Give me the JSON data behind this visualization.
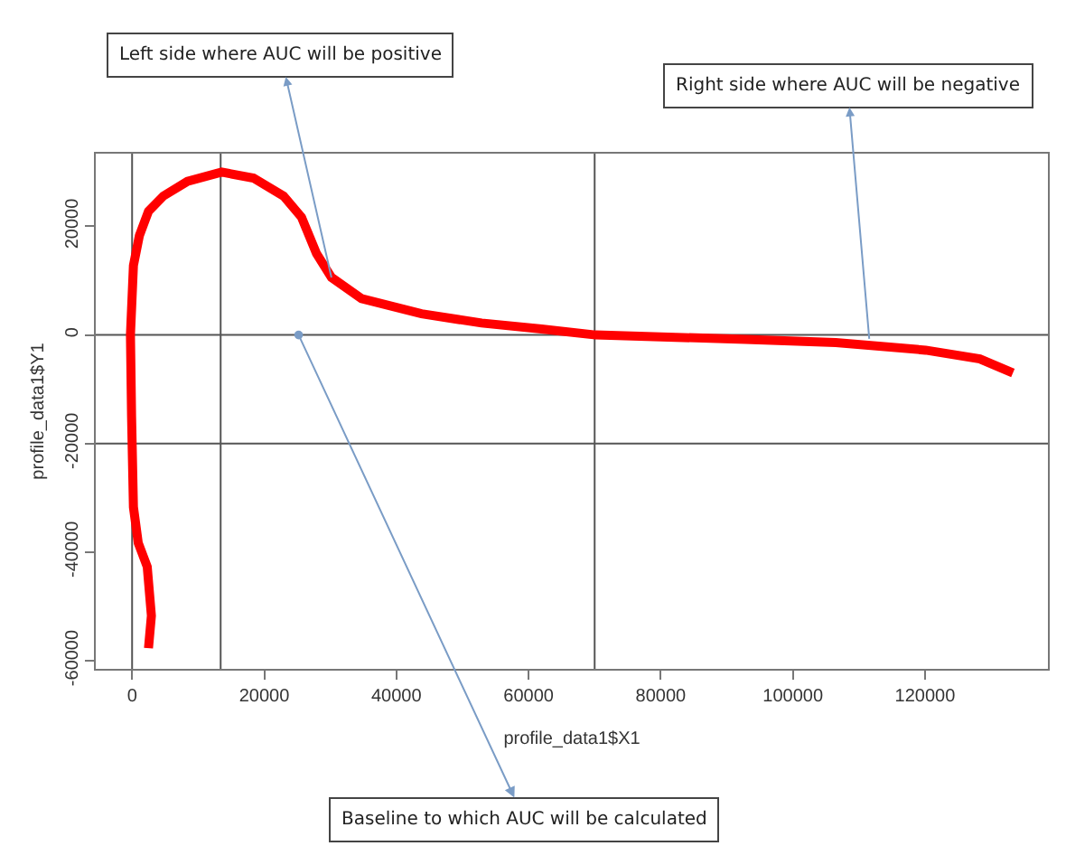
{
  "chart_data": {
    "type": "line",
    "xlabel": "profile_data1$X1",
    "ylabel": "profile_data1$Y1",
    "x": [
      2480,
      2920,
      2290,
      930,
      200,
      -80,
      -250,
      200,
      1100,
      2480,
      4740,
      8370,
      13550,
      18370,
      22920,
      25640,
      27900,
      30170,
      34720,
      43800,
      52900,
      61970,
      70140,
      92870,
      106500,
      120100,
      128300,
      133300
    ],
    "series": [
      {
        "color": "#ff0000",
        "values": [
          -57700,
          -51700,
          -42700,
          -38300,
          -31700,
          -15000,
          0,
          12800,
          18300,
          22800,
          25600,
          28300,
          30000,
          28900,
          25600,
          21700,
          15000,
          10600,
          6700,
          3900,
          2200,
          1100,
          0,
          -800,
          -1400,
          -2800,
          -4400,
          -7000
        ]
      }
    ],
    "xlim": [
      -5500,
      138600
    ],
    "ylim": [
      -61500,
      33400
    ],
    "xticks": [
      0,
      20000,
      40000,
      60000,
      80000,
      100000,
      120000
    ],
    "yticks": [
      -60000,
      -40000,
      -20000,
      0,
      20000
    ],
    "grid": false,
    "marker": "none",
    "line_style": "solid",
    "ref_lines": [
      {
        "axis": "x",
        "value": 0,
        "color": "#555555"
      },
      {
        "axis": "x",
        "value": 13400,
        "color": "#555555"
      },
      {
        "axis": "x",
        "value": 70000,
        "color": "#555555"
      },
      {
        "axis": "y",
        "value": 0,
        "color": "#555555"
      },
      {
        "axis": "y",
        "value": -20000,
        "color": "#555555"
      }
    ],
    "annotations": [
      {
        "text": "Left side where AUC will be positive",
        "x": 30170,
        "y": 10600
      },
      {
        "text": "Right side where AUC will be negative",
        "x": 111560,
        "y": -700
      },
      {
        "text": "Baseline to which AUC will be calculated",
        "x": 25200,
        "y": 0
      }
    ]
  }
}
